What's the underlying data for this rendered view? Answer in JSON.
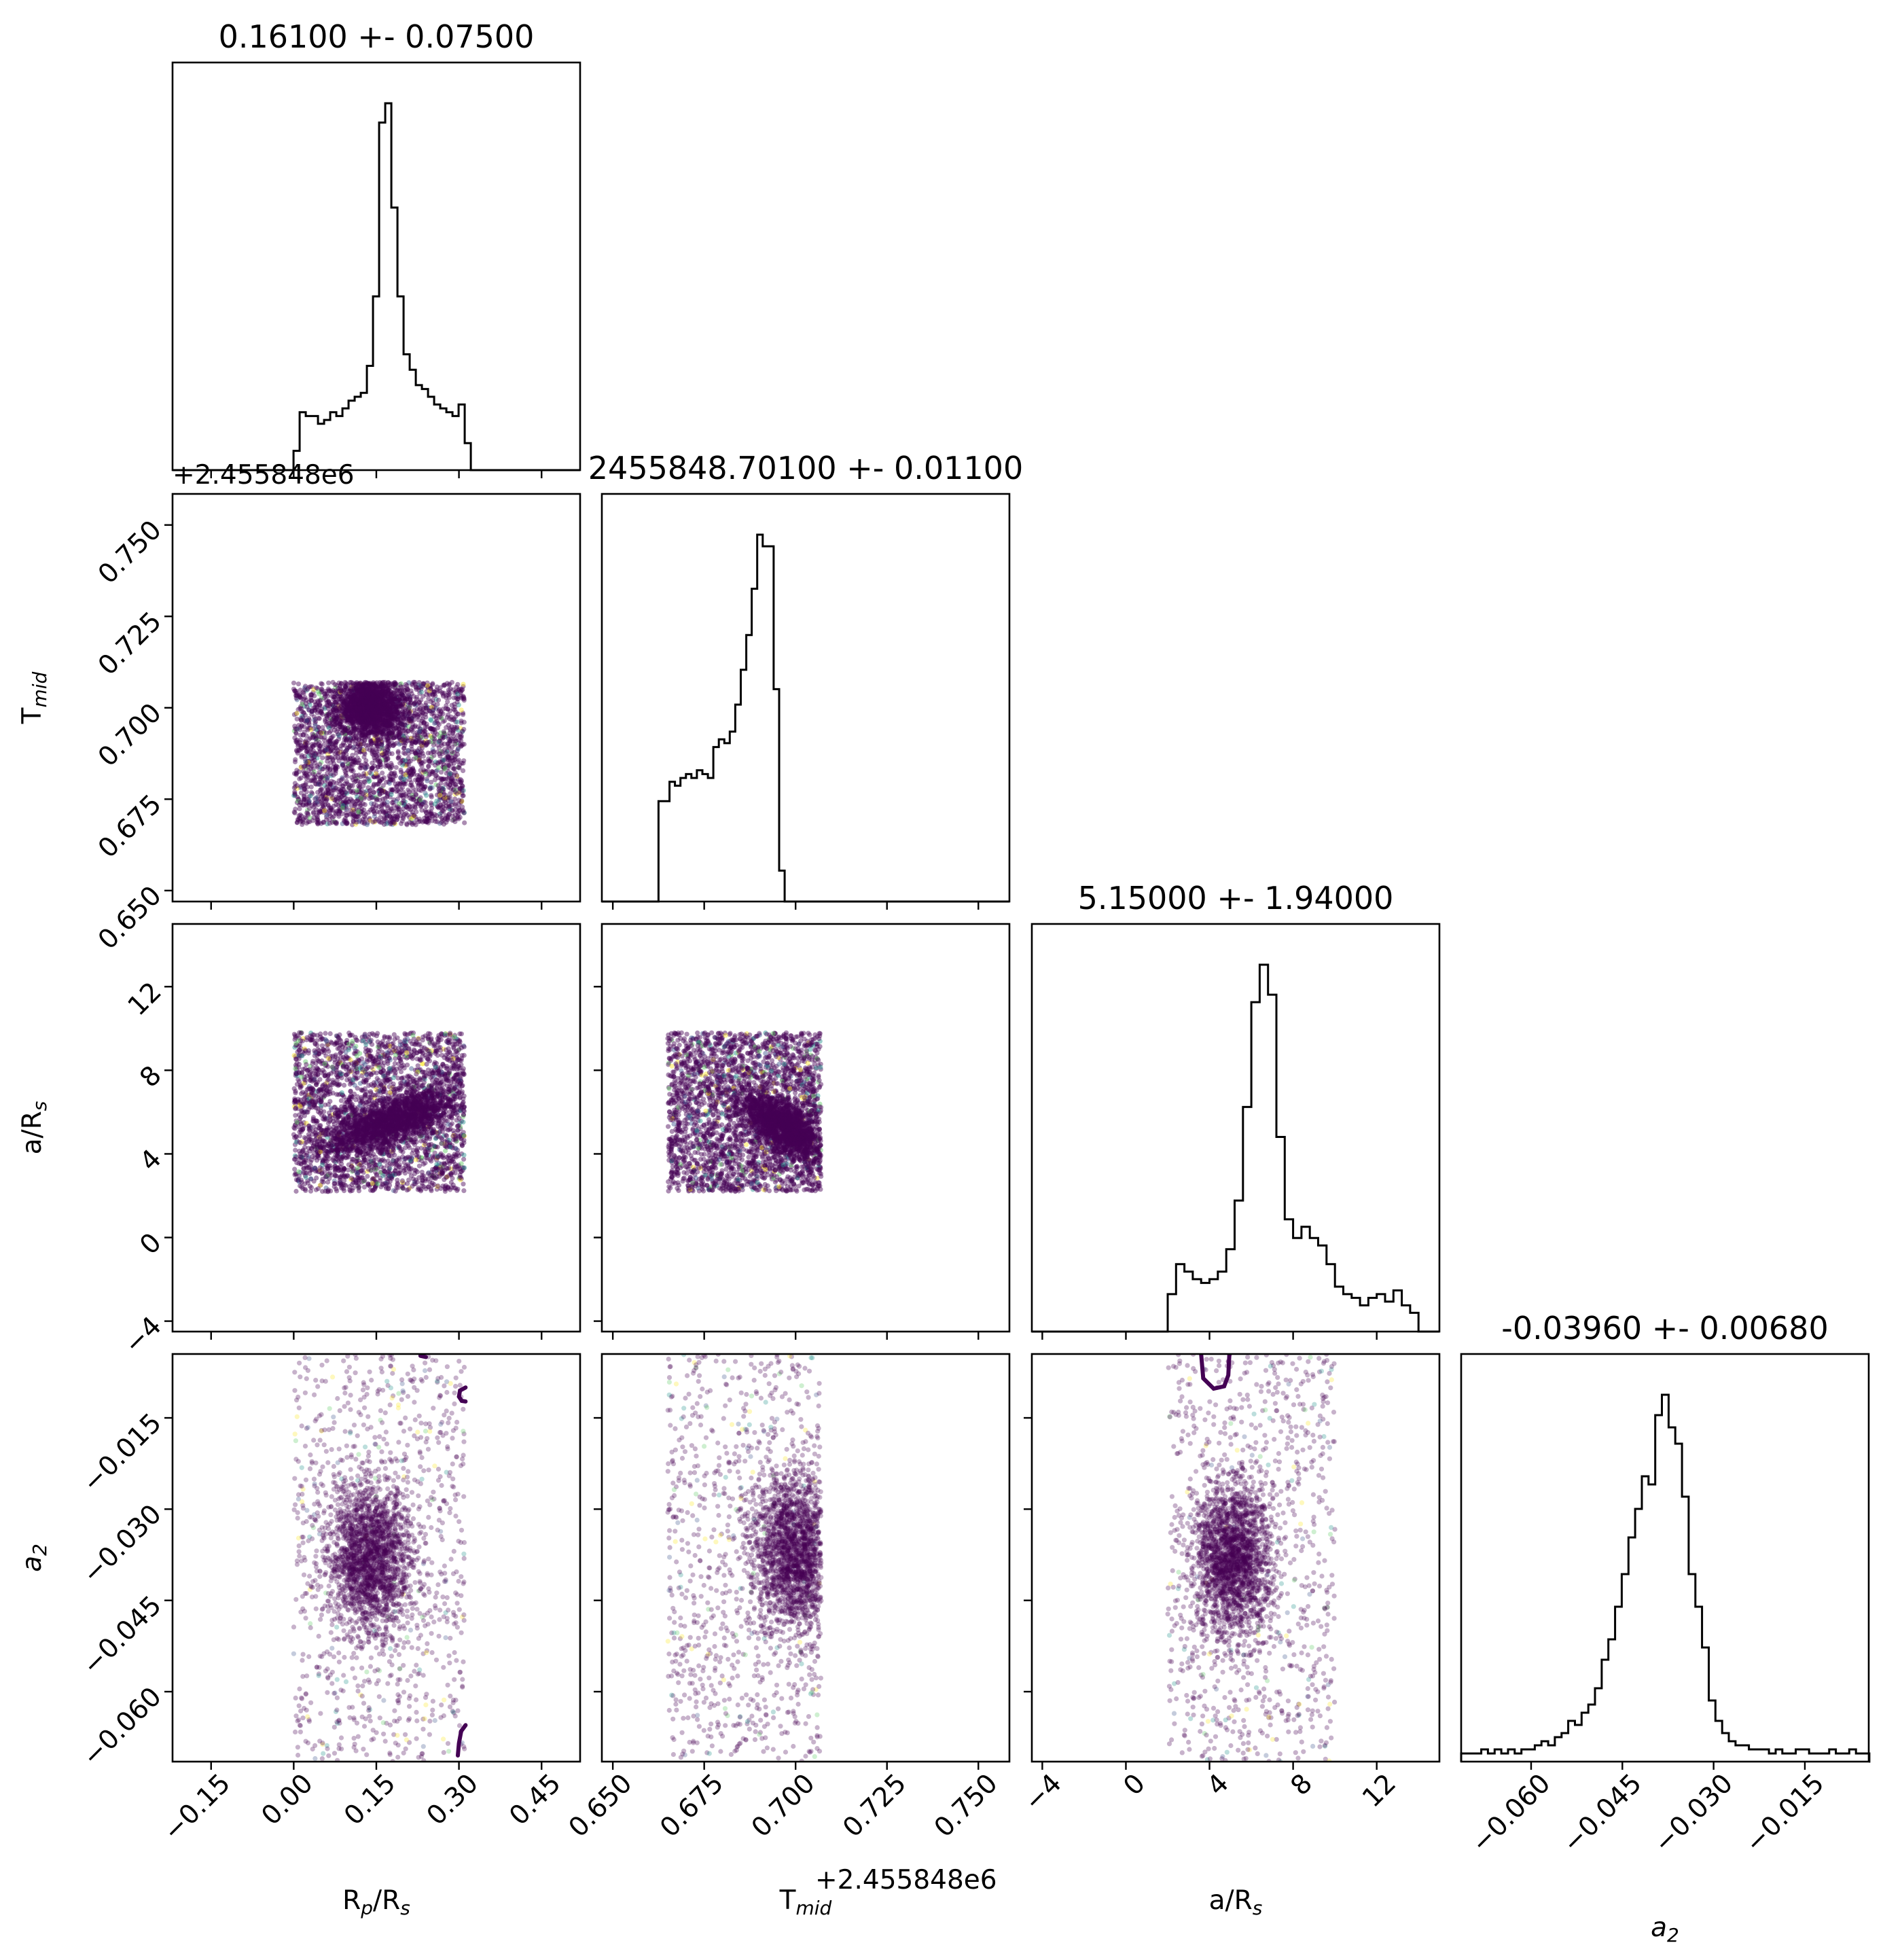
{
  "chart_data": {
    "type": "corner",
    "point_color": "#440154",
    "scatter_accent_colors": [
      "#fde725",
      "#21918c",
      "#3b528b",
      "#5ec962"
    ],
    "parameters": [
      {
        "key": "rp",
        "label": "R<sub>p</sub>/R<sub>s</sub>",
        "label_text": "Rp/Rs",
        "title": "0.16100 +- 0.07500",
        "range": [
          -0.22,
          0.52
        ],
        "ticks": [
          -0.15,
          0.0,
          0.15,
          0.3,
          0.45
        ],
        "tick_labels": [
          "−0.15",
          "0.00",
          "0.15",
          "0.30",
          "0.45"
        ],
        "offset_label": ""
      },
      {
        "key": "tmid",
        "label": "T<sub>mid</sub>",
        "label_text": "Tmid",
        "title": "2455848.70100 +- 0.01100",
        "range": [
          0.647,
          0.7585
        ],
        "ticks": [
          0.65,
          0.675,
          0.7,
          0.725,
          0.75
        ],
        "tick_labels": [
          "0.650",
          "0.675",
          "0.700",
          "0.725",
          "0.750"
        ],
        "offset_label": "+2.455848e6"
      },
      {
        "key": "a",
        "label": "a/R<sub>s</sub>",
        "label_text": "a/Rs",
        "title": "5.15000 +- 1.94000",
        "range": [
          -4.5,
          15.0
        ],
        "ticks": [
          -4,
          0,
          4,
          8,
          12
        ],
        "tick_labels": [
          "−4",
          "0",
          "4",
          "8",
          "12"
        ],
        "offset_label": ""
      },
      {
        "key": "a2",
        "label": "<i>a</i><sub>2</sub>",
        "label_text": "a2",
        "title": "-0.03960 +- 0.00680",
        "range": [
          -0.0715,
          -0.0045
        ],
        "ticks": [
          -0.06,
          -0.045,
          -0.03,
          -0.015
        ],
        "tick_labels": [
          "−0.060",
          "−0.045",
          "−0.030",
          "−0.015"
        ],
        "offset_label": ""
      }
    ],
    "histograms": [
      {
        "param": "rp",
        "bin_width": 0.0111,
        "x_start": -0.0003,
        "counts": [
          0.05,
          0.15,
          0.14,
          0.14,
          0.12,
          0.13,
          0.15,
          0.14,
          0.16,
          0.18,
          0.19,
          0.2,
          0.27,
          0.45,
          0.9,
          0.95,
          0.68,
          0.45,
          0.3,
          0.26,
          0.22,
          0.21,
          0.19,
          0.17,
          0.16,
          0.15,
          0.14,
          0.17,
          0.07
        ]
      },
      {
        "param": "tmid",
        "bin_width": 0.0015,
        "x_start": 0.6625,
        "counts": [
          0.26,
          0.26,
          0.31,
          0.3,
          0.32,
          0.33,
          0.32,
          0.34,
          0.33,
          0.32,
          0.4,
          0.42,
          0.41,
          0.44,
          0.51,
          0.6,
          0.69,
          0.81,
          0.95,
          0.92,
          0.92,
          0.55,
          0.08
        ]
      },
      {
        "param": "a",
        "bin_width": 0.4,
        "x_start": 2.0,
        "counts": [
          0.1,
          0.18,
          0.16,
          0.14,
          0.13,
          0.14,
          0.16,
          0.22,
          0.35,
          0.6,
          0.88,
          0.98,
          0.9,
          0.52,
          0.3,
          0.25,
          0.28,
          0.25,
          0.23,
          0.18,
          0.12,
          0.1,
          0.09,
          0.07,
          0.09,
          0.1,
          0.08,
          0.11,
          0.07,
          0.05
        ]
      },
      {
        "param": "a2",
        "bin_width": 0.0011,
        "x_start": -0.0715,
        "counts": [
          0.02,
          0.02,
          0.02,
          0.03,
          0.02,
          0.03,
          0.02,
          0.03,
          0.02,
          0.03,
          0.03,
          0.04,
          0.05,
          0.04,
          0.06,
          0.07,
          0.1,
          0.09,
          0.12,
          0.14,
          0.18,
          0.25,
          0.3,
          0.38,
          0.46,
          0.55,
          0.62,
          0.7,
          0.68,
          0.85,
          0.9,
          0.82,
          0.78,
          0.65,
          0.46,
          0.38,
          0.28,
          0.15,
          0.1,
          0.07,
          0.05,
          0.04,
          0.04,
          0.03,
          0.03,
          0.03,
          0.02,
          0.03,
          0.02,
          0.02,
          0.03,
          0.03,
          0.02,
          0.02,
          0.02,
          0.03,
          0.02,
          0.02,
          0.03,
          0.02,
          0.02
        ]
      }
    ],
    "scatter_panels": [
      {
        "x": "rp",
        "y": "tmid",
        "style": "box",
        "alpha": 0.45,
        "x_box": [
          0.0,
          0.31
        ],
        "y_box": [
          0.668,
          0.707
        ],
        "cluster": {
          "center": [
            0.14,
            0.7
          ],
          "spread": [
            0.03,
            0.004
          ]
        }
      },
      {
        "x": "rp",
        "y": "a",
        "style": "box",
        "alpha": 0.45,
        "x_box": [
          0.0,
          0.31
        ],
        "y_box": [
          2.2,
          9.8
        ],
        "cluster": {
          "center": [
            0.18,
            5.6
          ],
          "spread": [
            0.06,
            0.8
          ],
          "correlation": 0.7
        }
      },
      {
        "x": "tmid",
        "y": "a",
        "style": "box",
        "alpha": 0.45,
        "x_box": [
          0.665,
          0.707
        ],
        "y_box": [
          2.2,
          9.8
        ],
        "cluster": {
          "center": [
            0.697,
            5.3
          ],
          "spread": [
            0.006,
            0.8
          ],
          "correlation": -0.6
        }
      },
      {
        "x": "rp",
        "y": "a2",
        "style": "strip",
        "alpha": 0.3,
        "x_box": [
          0.0,
          0.31
        ],
        "cluster": {
          "center": [
            0.14,
            -0.0385
          ],
          "spread": [
            0.04,
            0.0065
          ]
        },
        "contours": [
          {
            "points": [
              [
                0.24,
                -0.005
              ],
              [
                0.23,
                -0.0048
              ]
            ]
          },
          {
            "points": [
              [
                0.312,
                -0.01
              ],
              [
                0.302,
                -0.0105
              ],
              [
                0.3,
                -0.0115
              ],
              [
                0.305,
                -0.0122
              ],
              [
                0.312,
                -0.0123
              ]
            ]
          },
          {
            "points": [
              [
                0.312,
                -0.0655
              ],
              [
                0.304,
                -0.0665
              ],
              [
                0.3,
                -0.0685
              ],
              [
                0.298,
                -0.0705
              ]
            ]
          }
        ]
      },
      {
        "x": "tmid",
        "y": "a2",
        "style": "strip",
        "alpha": 0.3,
        "x_box": [
          0.665,
          0.707
        ],
        "cluster": {
          "center": [
            0.7,
            -0.037
          ],
          "spread": [
            0.006,
            0.0065
          ]
        }
      },
      {
        "x": "a",
        "y": "a2",
        "style": "strip",
        "alpha": 0.3,
        "x_box": [
          2.0,
          10.0
        ],
        "cluster": {
          "center": [
            5.1,
            -0.0385
          ],
          "spread": [
            0.9,
            0.0065
          ]
        },
        "contours": [
          {
            "points": [
              [
                3.6,
                -0.0045
              ],
              [
                3.7,
                -0.0085
              ],
              [
                4.2,
                -0.0102
              ],
              [
                4.7,
                -0.0098
              ],
              [
                4.9,
                -0.008
              ],
              [
                4.95,
                -0.0045
              ]
            ]
          }
        ]
      }
    ]
  }
}
